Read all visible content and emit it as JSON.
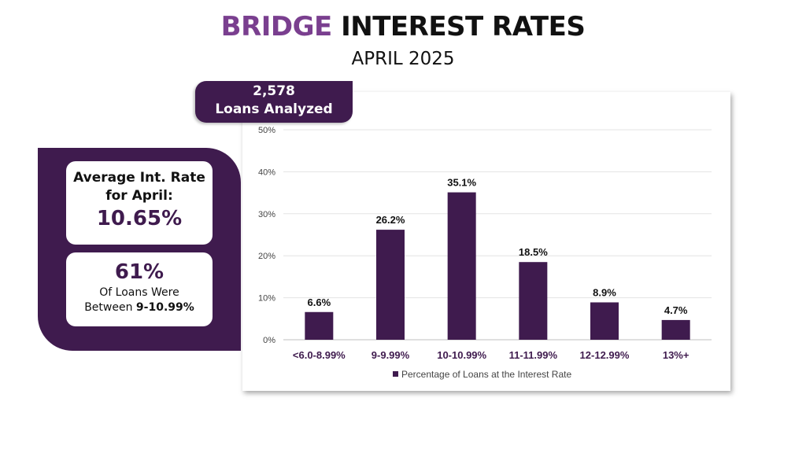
{
  "header": {
    "title_accent": "BRIDGE",
    "title_rest": "INTEREST RATES",
    "subtitle": "APRIL 2025"
  },
  "loans_tab": {
    "count": "2,578",
    "label": "Loans Analyzed"
  },
  "stats": {
    "avg_label_line1": "Average Int. Rate",
    "avg_label_line2": "for April:",
    "avg_value": "10.65%",
    "share_value": "61%",
    "share_line1": "Of Loans Were",
    "share_line2_prefix": "Between ",
    "share_line2_bold": "9-10.99%"
  },
  "colors": {
    "bar": "#3f1b4e",
    "accent": "#7a3f8f",
    "panel": "#3f1b4e",
    "category_text": "#3f1b4e"
  },
  "chart_data": {
    "type": "bar",
    "categories": [
      "<6.0-8.99%",
      "9-9.99%",
      "10-10.99%",
      "11-11.99%",
      "12-12.99%",
      "13%+"
    ],
    "series": [
      {
        "name": "Percentage of Loans at the Interest Rate",
        "values": [
          6.6,
          26.2,
          35.1,
          18.5,
          8.9,
          4.7
        ]
      }
    ],
    "data_labels": [
      "6.6%",
      "26.2%",
      "35.1%",
      "18.5%",
      "8.9%",
      "4.7%"
    ],
    "yticks": [
      "0%",
      "10%",
      "20%",
      "30%",
      "40%",
      "50%"
    ],
    "ylim": [
      0,
      50
    ],
    "grid": true,
    "legend": "bottom"
  }
}
